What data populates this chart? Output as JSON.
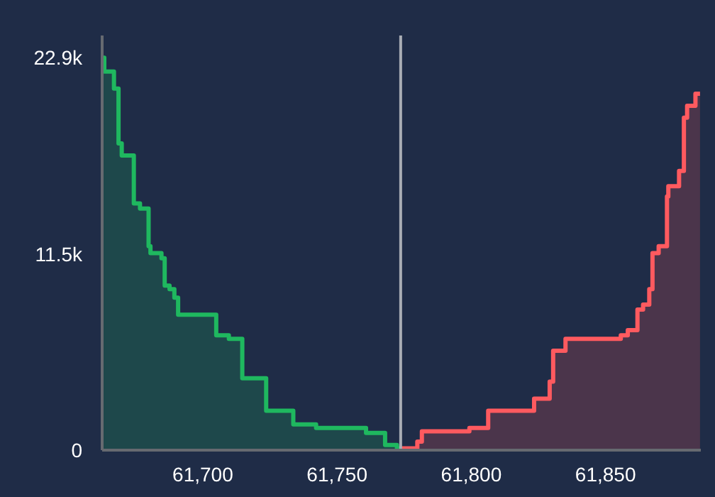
{
  "chart_data": {
    "type": "area",
    "xlim": [
      61662.5,
      61885.5
    ],
    "xticks": [
      {
        "value": 61700,
        "label": "61,700"
      },
      {
        "value": 61750,
        "label": "61,750"
      },
      {
        "value": 61800,
        "label": "61,800"
      },
      {
        "value": 61850,
        "label": "61,850"
      }
    ],
    "ylim": [
      0,
      24200
    ],
    "yticks": [
      0,
      {
        "value": 11450,
        "label": "11.5k"
      },
      {
        "value": 22900,
        "label": "22.9k"
      }
    ],
    "grid": false,
    "legend": false,
    "series": [
      {
        "color": "#1fb85f",
        "x": [
          61662.8,
          61663.3,
          61663.3,
          61666.9,
          61666.9,
          61668.6,
          61668.6,
          61669.8,
          61669.8,
          61674.3,
          61674.3,
          61676.6,
          61676.6,
          61679.8,
          61679.8,
          61680.5,
          61680.5,
          61684.6,
          61684.6,
          61685.8,
          61685.8,
          61687.6,
          61687.6,
          61689.4,
          61689.4,
          61690.8,
          61690.8,
          61705,
          61705,
          61709.7,
          61709.7,
          61714.7,
          61714.7,
          61723.6,
          61723.6,
          61733.7,
          61733.7,
          61742.2,
          61742.2,
          61760.8,
          61760.8,
          61767.9,
          61767.9,
          61772.3,
          61772.3,
          61773.7
        ],
        "values": [
          22900,
          22900,
          22100,
          22100,
          21100,
          21100,
          17900,
          17900,
          17200,
          17200,
          14400,
          14400,
          14100,
          14100,
          11900,
          11900,
          11500,
          11500,
          11200,
          11200,
          9600,
          9600,
          9400,
          9400,
          8900,
          8900,
          7900,
          7900,
          6700,
          6700,
          6500,
          6500,
          4200,
          4200,
          2300,
          2300,
          1500,
          1500,
          1300,
          1300,
          1000,
          1000,
          300,
          300,
          100,
          100
        ]
      },
      {
        "color": "#ff5a5f",
        "x": [
          61773.7,
          61779.9,
          61779.9,
          61781.6,
          61781.6,
          61799.3,
          61799.3,
          61806.3,
          61806.3,
          61823.4,
          61823.4,
          61829.2,
          61829.2,
          61830.5,
          61830.5,
          61835.1,
          61835.1,
          61855.7,
          61855.7,
          61858.3,
          61858.3,
          61861.9,
          61861.9,
          61864,
          61864,
          61866.3,
          61866.3,
          61867.5,
          61867.5,
          61869.8,
          61869.8,
          61872.9,
          61872.9,
          61873.4,
          61873.4,
          61877.4,
          61877.4,
          61879.2,
          61879.2,
          61880.4,
          61880.4,
          61883.5,
          61883.5,
          61885.2
        ],
        "values": [
          100,
          100,
          500,
          500,
          1100,
          1100,
          1300,
          1300,
          2300,
          2300,
          3000,
          3000,
          4000,
          4000,
          5800,
          5800,
          6500,
          6500,
          6700,
          6700,
          7000,
          7000,
          8200,
          8200,
          8500,
          8500,
          9400,
          9400,
          11500,
          11500,
          11900,
          11900,
          14800,
          14800,
          15400,
          15400,
          16300,
          16300,
          19400,
          19400,
          20100,
          20100,
          20800,
          20800
        ]
      }
    ],
    "ref_lines": [
      {
        "axis": "x",
        "value": 61773.7,
        "color": "#a9adb5"
      }
    ]
  }
}
